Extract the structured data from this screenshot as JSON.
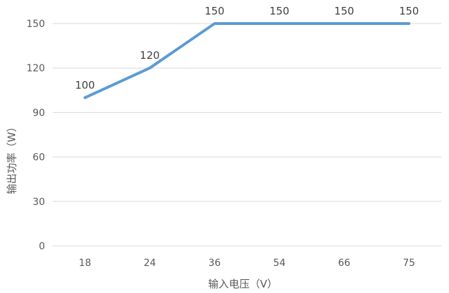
{
  "chart_data": {
    "type": "line",
    "categories": [
      "18",
      "24",
      "36",
      "54",
      "66",
      "75"
    ],
    "series": [
      {
        "values": [
          100,
          120,
          150,
          150,
          150,
          150
        ]
      }
    ],
    "data_labels": [
      "100",
      "120",
      "150",
      "150",
      "150",
      "150"
    ],
    "y_ticks": [
      0,
      30,
      60,
      90,
      120,
      150
    ],
    "ylim": [
      0,
      150
    ],
    "xlabel": "输入电压（V）",
    "ylabel": "输出功率（W）",
    "grid": "horizontal",
    "legend": "none",
    "colors": {
      "series": "#5B9BD5",
      "grid": "#D9D9D9",
      "text": "#595959",
      "label": "#404040"
    }
  }
}
